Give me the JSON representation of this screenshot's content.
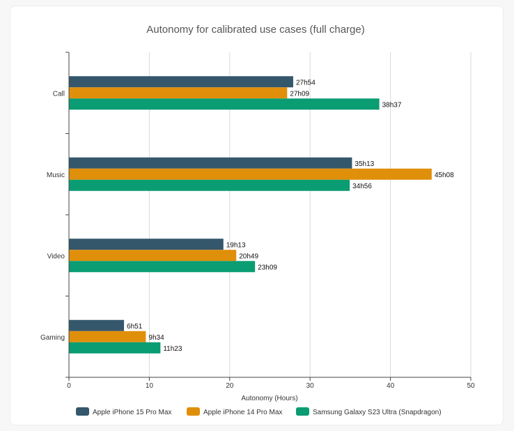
{
  "chart_data": {
    "type": "bar",
    "orientation": "horizontal",
    "title": "Autonomy for calibrated use cases (full charge)",
    "xlabel": "Autonomy (Hours)",
    "ylabel": "",
    "xlim": [
      0,
      50
    ],
    "xticks": [
      0,
      10,
      20,
      30,
      40,
      50
    ],
    "grid": true,
    "legend_position": "bottom",
    "categories": [
      "Call",
      "Music",
      "Video",
      "Gaming"
    ],
    "series": [
      {
        "name": "Apple iPhone 15 Pro Max",
        "color": "#34576b",
        "values": [
          27.9,
          35.217,
          19.217,
          6.85
        ],
        "labels": [
          "27h54",
          "35h13",
          "19h13",
          "6h51"
        ]
      },
      {
        "name": "Apple iPhone 14 Pro Max",
        "color": "#e08f0b",
        "values": [
          27.15,
          45.133,
          20.817,
          9.567
        ],
        "labels": [
          "27h09",
          "45h08",
          "20h49",
          "9h34"
        ]
      },
      {
        "name": "Samsung Galaxy S23 Ultra (Snapdragon)",
        "color": "#0a9c72",
        "values": [
          38.617,
          34.933,
          23.15,
          11.383
        ],
        "labels": [
          "38h37",
          "34h56",
          "23h09",
          "11h23"
        ]
      }
    ]
  }
}
